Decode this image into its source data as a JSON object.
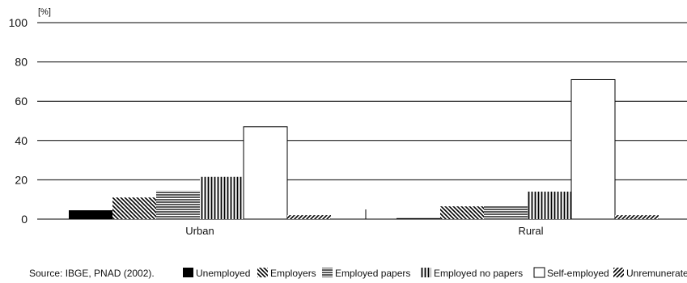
{
  "chart_data": {
    "type": "bar",
    "title": "",
    "xlabel": "",
    "ylabel": "[%]",
    "ylim": [
      0,
      100
    ],
    "yticks": [
      0,
      20,
      40,
      60,
      80,
      100
    ],
    "grid": true,
    "legend_position": "bottom",
    "categories": [
      "Urban",
      "Rural"
    ],
    "series": [
      {
        "name": "Unemployed",
        "pattern": "solid",
        "color": "#000000",
        "values": [
          4.5,
          0.5
        ]
      },
      {
        "name": "Employers",
        "pattern": "diagonal-back",
        "color": "#000000",
        "values": [
          11,
          6.5
        ]
      },
      {
        "name": "Employed papers",
        "pattern": "horizontal",
        "color": "#000000",
        "values": [
          14.5,
          6.5
        ]
      },
      {
        "name": "Employed no papers",
        "pattern": "vertical",
        "color": "#000000",
        "values": [
          21.5,
          14
        ]
      },
      {
        "name": "Self-employed",
        "pattern": "empty",
        "color": "#ffffff",
        "values": [
          47,
          71
        ]
      },
      {
        "name": "Unremunerated",
        "pattern": "diagonal-forward",
        "color": "#000000",
        "values": [
          2,
          2
        ]
      }
    ]
  },
  "footer": {
    "source": "Source: IBGE, PNAD (2002)."
  }
}
